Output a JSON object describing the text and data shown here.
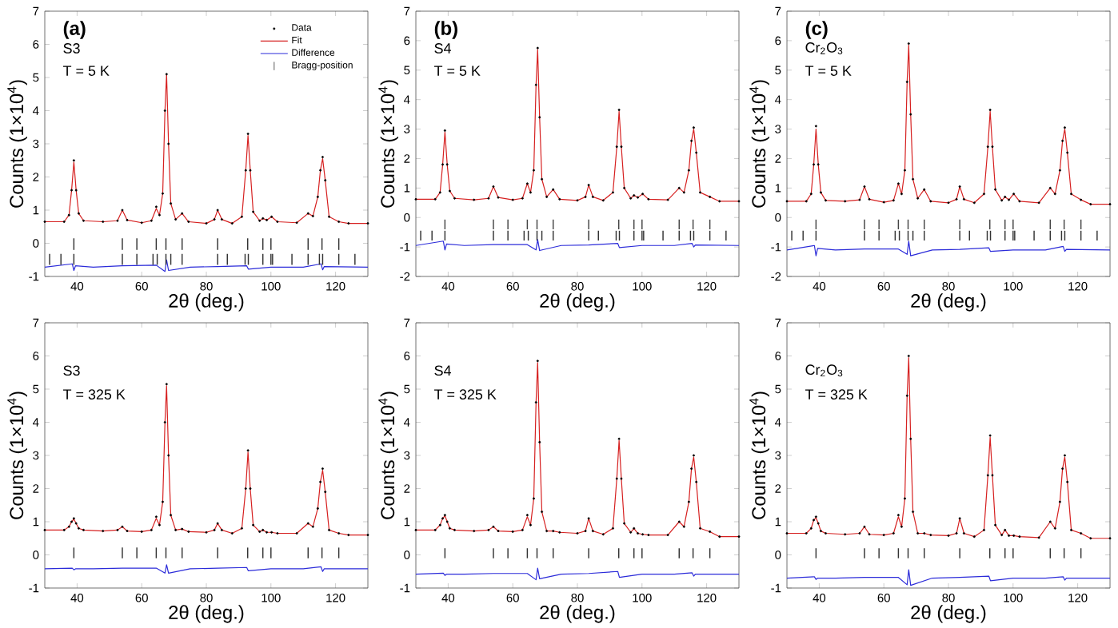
{
  "chart_data": [
    {
      "type": "line",
      "annotations": [
        "(a)",
        "S3",
        "T = 5 K"
      ],
      "xlabel": "2θ (deg.)",
      "ylabel": "Counts (1×10$^{4}$)",
      "xlim": [
        30,
        130
      ],
      "ylim": [
        -1,
        7
      ],
      "xticks": [
        40,
        60,
        80,
        100,
        120
      ],
      "yticks": [
        -1,
        0,
        1,
        2,
        3,
        4,
        5,
        6,
        7
      ],
      "legend": "top right",
      "x": [
        30,
        36,
        37.5,
        38.3,
        39,
        39.7,
        40.5,
        42,
        48,
        52.5,
        54,
        55.5,
        60,
        63,
        64.5,
        65.5,
        66.5,
        67.2,
        67.7,
        68.3,
        69,
        70.5,
        72.5,
        74.5,
        80,
        82.5,
        83.5,
        84.8,
        88,
        91,
        92.2,
        92.9,
        93.6,
        94.5,
        96.5,
        97.5,
        98.7,
        100.2,
        102,
        108,
        111.5,
        113,
        114.5,
        115.3,
        116,
        116.8,
        118,
        121,
        124,
        130
      ],
      "series": [
        {
          "name": "Data",
          "type": "scatter",
          "marker": "circle",
          "color": "#000000",
          "values": [
            0.65,
            0.65,
            0.85,
            1.6,
            2.5,
            1.6,
            0.9,
            0.68,
            0.65,
            0.68,
            1.0,
            0.7,
            0.62,
            0.68,
            1.1,
            0.85,
            1.5,
            4.0,
            5.1,
            3.0,
            1.2,
            0.72,
            0.9,
            0.65,
            0.6,
            0.72,
            1.0,
            0.72,
            0.6,
            0.8,
            2.2,
            3.3,
            2.2,
            0.95,
            0.68,
            0.75,
            0.7,
            0.8,
            0.65,
            0.62,
            0.9,
            0.82,
            1.4,
            2.2,
            2.6,
            1.9,
            0.8,
            0.65,
            0.6,
            0.6
          ]
        },
        {
          "name": "Fit",
          "type": "line",
          "color": "#d62020",
          "values": [
            0.65,
            0.65,
            0.85,
            1.6,
            2.45,
            1.6,
            0.9,
            0.68,
            0.65,
            0.68,
            1.0,
            0.7,
            0.62,
            0.68,
            1.05,
            0.85,
            1.5,
            4.0,
            5.1,
            3.0,
            1.2,
            0.72,
            0.9,
            0.65,
            0.6,
            0.72,
            1.0,
            0.72,
            0.6,
            0.8,
            2.2,
            3.25,
            2.2,
            0.95,
            0.68,
            0.75,
            0.7,
            0.8,
            0.65,
            0.62,
            0.9,
            0.82,
            1.4,
            2.2,
            2.55,
            1.9,
            0.8,
            0.65,
            0.6,
            0.6
          ]
        },
        {
          "name": "Difference",
          "type": "line",
          "color": "#2b2bd9",
          "x": [
            30,
            38.5,
            39,
            39.5,
            45,
            54,
            64.5,
            67.2,
            67.7,
            68.3,
            75,
            83.5,
            92.5,
            93,
            100,
            110,
            115.5,
            116,
            116.5,
            130
          ],
          "values": [
            -0.72,
            -0.62,
            -0.82,
            -0.68,
            -0.72,
            -0.68,
            -0.66,
            -0.85,
            -0.5,
            -0.82,
            -0.72,
            -0.7,
            -0.68,
            -0.78,
            -0.72,
            -0.72,
            -0.62,
            -0.8,
            -0.7,
            -0.72
          ]
        },
        {
          "name": "Bragg-position",
          "type": "bar",
          "color": "#333333",
          "x": [
            39,
            54,
            58.5,
            64.5,
            67.5,
            72.5,
            83.5,
            92.8,
            97.5,
            100,
            111.5,
            115.8,
            121
          ],
          "base": [
            -0.2,
            -0.2,
            -0.2,
            -0.2,
            -0.2,
            -0.2,
            -0.2,
            -0.2,
            -0.2,
            -0.2,
            -0.2,
            -0.2,
            -0.2
          ],
          "values": [
            0.35,
            0.35,
            0.35,
            0.35,
            0.35,
            0.35,
            0.35,
            0.35,
            0.35,
            0.35,
            0.35,
            0.35,
            0.35
          ]
        },
        {
          "type": "bar",
          "color": "#333333",
          "x": [
            31.5,
            35,
            39,
            54,
            58.5,
            63.5,
            64.8,
            67.5,
            69,
            72.5,
            83.5,
            86.5,
            92,
            93,
            97.5,
            100,
            100.5,
            106.5,
            111.5,
            115,
            116,
            121,
            126
          ],
          "base": [
            -0.65,
            -0.65,
            -0.65,
            -0.65,
            -0.65,
            -0.65,
            -0.65,
            -0.65,
            -0.65,
            -0.65,
            -0.65,
            -0.65,
            -0.65,
            -0.65,
            -0.65,
            -0.65,
            -0.65,
            -0.65,
            -0.65,
            -0.65,
            -0.65,
            -0.65,
            -0.65
          ],
          "values": [
            0.33,
            0.33,
            0.33,
            0.33,
            0.33,
            0.33,
            0.33,
            0.33,
            0.33,
            0.33,
            0.33,
            0.33,
            0.33,
            0.33,
            0.33,
            0.33,
            0.33,
            0.33,
            0.33,
            0.33,
            0.33,
            0.33,
            0.33
          ]
        }
      ]
    },
    {
      "type": "line",
      "annotations": [
        "(b)",
        "S4",
        "T = 5 K"
      ],
      "xlabel": "2θ (deg.)",
      "ylabel": "Counts (1×10$^{4}$)",
      "xlim": [
        30,
        130
      ],
      "ylim": [
        -2,
        7
      ],
      "xticks": [
        40,
        60,
        80,
        100,
        120
      ],
      "yticks": [
        -2,
        -1,
        0,
        1,
        2,
        3,
        4,
        5,
        6,
        7
      ],
      "x": [
        30,
        36,
        37.5,
        38.3,
        39,
        39.7,
        40.5,
        42,
        48,
        52.5,
        54,
        55.5,
        60,
        63,
        64.5,
        65.5,
        66.5,
        67.2,
        67.7,
        68.3,
        69,
        70.5,
        72.5,
        74.5,
        80,
        82.5,
        83.5,
        84.8,
        88,
        91,
        92.2,
        92.9,
        93.6,
        94.5,
        96.5,
        97.5,
        98.7,
        100.2,
        102,
        108,
        111.5,
        113,
        114.5,
        115.3,
        116,
        116.8,
        118,
        121,
        124,
        130
      ],
      "series": [
        {
          "type": "scatter",
          "marker": "circle",
          "color": "#000000",
          "values": [
            0.62,
            0.62,
            0.85,
            1.8,
            2.95,
            1.8,
            0.9,
            0.65,
            0.6,
            0.65,
            1.05,
            0.68,
            0.6,
            0.65,
            1.15,
            0.85,
            1.6,
            4.5,
            5.75,
            3.4,
            1.3,
            0.7,
            0.95,
            0.62,
            0.58,
            0.7,
            1.1,
            0.7,
            0.58,
            0.85,
            2.4,
            3.65,
            2.4,
            1.0,
            0.65,
            0.75,
            0.68,
            0.8,
            0.62,
            0.6,
            1.0,
            0.85,
            1.6,
            2.6,
            3.05,
            2.2,
            0.85,
            0.7,
            0.55,
            0.55
          ]
        },
        {
          "type": "line",
          "color": "#d62020",
          "values": [
            0.62,
            0.62,
            0.85,
            1.8,
            2.9,
            1.8,
            0.9,
            0.65,
            0.6,
            0.65,
            1.05,
            0.68,
            0.6,
            0.65,
            1.15,
            0.85,
            1.6,
            4.5,
            5.7,
            3.4,
            1.3,
            0.7,
            0.95,
            0.62,
            0.58,
            0.7,
            1.1,
            0.7,
            0.58,
            0.85,
            2.4,
            3.6,
            2.4,
            1.0,
            0.65,
            0.75,
            0.68,
            0.8,
            0.62,
            0.6,
            1.0,
            0.85,
            1.6,
            2.6,
            3.0,
            2.2,
            0.85,
            0.7,
            0.55,
            0.55
          ]
        },
        {
          "type": "line",
          "color": "#2b2bd9",
          "x": [
            30,
            38.5,
            39,
            39.5,
            45,
            54,
            64.5,
            67.2,
            67.7,
            68.3,
            75,
            83.5,
            92.5,
            93,
            100,
            110,
            115.5,
            116,
            116.5,
            130
          ],
          "values": [
            -0.95,
            -0.8,
            -1.1,
            -0.9,
            -0.95,
            -0.92,
            -0.92,
            -1.1,
            -0.75,
            -1.12,
            -0.95,
            -0.93,
            -0.88,
            -1.02,
            -0.95,
            -0.95,
            -0.88,
            -1.0,
            -0.93,
            -0.95
          ]
        },
        {
          "type": "bar",
          "color": "#444444",
          "x": [
            39,
            54,
            58.5,
            64.5,
            67.5,
            72.5,
            83.5,
            92.8,
            97.5,
            100,
            111.5,
            115.8,
            121
          ],
          "base": [
            -0.4,
            -0.4,
            -0.4,
            -0.4,
            -0.4,
            -0.4,
            -0.4,
            -0.4,
            -0.4,
            -0.4,
            -0.4,
            -0.4,
            -0.4
          ],
          "values": [
            0.33,
            0.33,
            0.33,
            0.33,
            0.33,
            0.33,
            0.33,
            0.33,
            0.33,
            0.33,
            0.33,
            0.33,
            0.33
          ]
        },
        {
          "type": "bar",
          "color": "#333333",
          "x": [
            31.5,
            35,
            39,
            54,
            58.5,
            63.5,
            64.8,
            67.5,
            69,
            72.5,
            83.5,
            86.5,
            92,
            93,
            97.5,
            100,
            100.5,
            106.5,
            111.5,
            115,
            116,
            121,
            126
          ],
          "base": [
            -0.78,
            -0.78,
            -0.78,
            -0.78,
            -0.78,
            -0.78,
            -0.78,
            -0.78,
            -0.78,
            -0.78,
            -0.78,
            -0.78,
            -0.78,
            -0.78,
            -0.78,
            -0.78,
            -0.78,
            -0.78,
            -0.78,
            -0.78,
            -0.78,
            -0.78,
            -0.78
          ],
          "values": [
            0.33,
            0.33,
            0.33,
            0.33,
            0.33,
            0.33,
            0.33,
            0.33,
            0.33,
            0.33,
            0.33,
            0.33,
            0.33,
            0.33,
            0.33,
            0.33,
            0.33,
            0.33,
            0.33,
            0.33,
            0.33,
            0.33,
            0.33
          ]
        }
      ]
    },
    {
      "type": "line",
      "annotations": [
        "(c)",
        "Cr$_{2}$O$_{3}$",
        "T = 5 K"
      ],
      "xlabel": "2θ (deg.)",
      "ylabel": "Counts (1×10$^{4}$)",
      "xlim": [
        30,
        130
      ],
      "ylim": [
        -2,
        7
      ],
      "xticks": [
        40,
        60,
        80,
        100,
        120
      ],
      "yticks": [
        -2,
        -1,
        0,
        1,
        2,
        3,
        4,
        5,
        6,
        7
      ],
      "x": [
        30,
        36,
        37.5,
        38.3,
        39,
        39.7,
        40.5,
        42,
        48,
        52.5,
        54,
        55.5,
        60,
        63,
        64.5,
        65.5,
        66.5,
        67.2,
        67.7,
        68.3,
        69,
        70.5,
        72.5,
        74.5,
        80,
        82.5,
        83.5,
        84.8,
        88,
        91,
        92.2,
        92.9,
        93.6,
        94.5,
        96.5,
        97.5,
        98.7,
        100.2,
        102,
        108,
        111.5,
        113,
        114.5,
        115.3,
        116,
        116.8,
        118,
        121,
        124,
        130
      ],
      "series": [
        {
          "type": "scatter",
          "marker": "circle",
          "color": "#000000",
          "values": [
            0.55,
            0.55,
            0.8,
            1.8,
            3.1,
            1.8,
            0.85,
            0.58,
            0.55,
            0.6,
            1.05,
            0.62,
            0.52,
            0.58,
            1.15,
            0.8,
            1.6,
            4.6,
            5.9,
            3.5,
            1.3,
            0.65,
            0.95,
            0.55,
            0.5,
            0.62,
            1.05,
            0.62,
            0.5,
            0.8,
            2.4,
            3.65,
            2.4,
            0.95,
            0.58,
            0.7,
            0.6,
            0.8,
            0.55,
            0.5,
            1.0,
            0.8,
            1.6,
            2.6,
            3.05,
            2.2,
            0.8,
            0.6,
            0.45,
            0.45
          ]
        },
        {
          "type": "line",
          "color": "#d62020",
          "values": [
            0.55,
            0.55,
            0.8,
            1.8,
            3.0,
            1.8,
            0.85,
            0.58,
            0.55,
            0.6,
            1.05,
            0.62,
            0.52,
            0.58,
            1.15,
            0.8,
            1.6,
            4.6,
            5.85,
            3.5,
            1.3,
            0.65,
            0.95,
            0.55,
            0.5,
            0.62,
            1.05,
            0.62,
            0.5,
            0.8,
            2.4,
            3.6,
            2.4,
            0.95,
            0.58,
            0.7,
            0.6,
            0.8,
            0.55,
            0.5,
            1.0,
            0.8,
            1.6,
            2.6,
            3.0,
            2.2,
            0.8,
            0.6,
            0.45,
            0.45
          ]
        },
        {
          "type": "line",
          "color": "#2b2bd9",
          "x": [
            30,
            38.5,
            39,
            39.5,
            45,
            54,
            64.5,
            67.2,
            67.7,
            68.3,
            75,
            83.5,
            92.5,
            93,
            100,
            110,
            115.5,
            116,
            116.5,
            130
          ],
          "values": [
            -1.1,
            -0.95,
            -1.3,
            -1.05,
            -1.1,
            -1.07,
            -1.07,
            -1.25,
            -0.8,
            -1.3,
            -1.1,
            -1.08,
            -1.03,
            -1.15,
            -1.1,
            -1.1,
            -0.98,
            -1.15,
            -1.08,
            -1.1
          ]
        },
        {
          "type": "bar",
          "color": "#444444",
          "x": [
            39,
            54,
            58.5,
            64.5,
            67.5,
            72.5,
            83.5,
            92.8,
            97.5,
            100,
            111.5,
            115.8,
            121
          ],
          "base": [
            -0.4,
            -0.4,
            -0.4,
            -0.4,
            -0.4,
            -0.4,
            -0.4,
            -0.4,
            -0.4,
            -0.4,
            -0.4,
            -0.4,
            -0.4
          ],
          "values": [
            0.33,
            0.33,
            0.33,
            0.33,
            0.33,
            0.33,
            0.33,
            0.33,
            0.33,
            0.33,
            0.33,
            0.33,
            0.33
          ]
        },
        {
          "type": "bar",
          "color": "#333333",
          "x": [
            31.5,
            35,
            39,
            54,
            58.5,
            63.5,
            64.8,
            67.5,
            69,
            72.5,
            83.5,
            86.5,
            92,
            93,
            97.5,
            100,
            100.5,
            106.5,
            111.5,
            115,
            116,
            121,
            126
          ],
          "base": [
            -0.78,
            -0.78,
            -0.78,
            -0.78,
            -0.78,
            -0.78,
            -0.78,
            -0.78,
            -0.78,
            -0.78,
            -0.78,
            -0.78,
            -0.78,
            -0.78,
            -0.78,
            -0.78,
            -0.78,
            -0.78,
            -0.78,
            -0.78,
            -0.78,
            -0.78,
            -0.78
          ],
          "values": [
            0.33,
            0.33,
            0.33,
            0.33,
            0.33,
            0.33,
            0.33,
            0.33,
            0.33,
            0.33,
            0.33,
            0.33,
            0.33,
            0.33,
            0.33,
            0.33,
            0.33,
            0.33,
            0.33,
            0.33,
            0.33,
            0.33,
            0.33
          ]
        }
      ]
    },
    {
      "type": "line",
      "annotations": [
        "S3",
        "T = 325 K"
      ],
      "xlabel": "2θ (deg.)",
      "ylabel": "Counts (1×10$^{4}$)",
      "xlim": [
        30,
        130
      ],
      "ylim": [
        -1,
        7
      ],
      "xticks": [
        40,
        60,
        80,
        100,
        120
      ],
      "yticks": [
        -1,
        0,
        1,
        2,
        3,
        4,
        5,
        6,
        7
      ],
      "x": [
        30,
        36,
        37.5,
        38.3,
        39,
        39.7,
        40.5,
        42,
        48,
        52.5,
        54,
        55.5,
        60,
        63,
        64.5,
        65.5,
        66.5,
        67.2,
        67.7,
        68.3,
        69,
        70.5,
        72.5,
        74.5,
        80,
        82.5,
        83.5,
        84.8,
        88,
        91,
        92.2,
        92.9,
        93.6,
        94.5,
        96.5,
        97.5,
        98.7,
        100.2,
        102,
        108,
        111.5,
        113,
        114.5,
        115.3,
        116,
        116.8,
        118,
        121,
        124,
        130
      ],
      "series": [
        {
          "type": "scatter",
          "marker": "circle",
          "color": "#000000",
          "values": [
            0.75,
            0.75,
            0.85,
            1.0,
            1.1,
            0.95,
            0.8,
            0.75,
            0.72,
            0.75,
            0.85,
            0.72,
            0.7,
            0.75,
            1.15,
            0.9,
            1.6,
            4.0,
            5.15,
            3.0,
            1.2,
            0.75,
            0.78,
            0.7,
            0.68,
            0.75,
            0.95,
            0.75,
            0.65,
            0.8,
            2.0,
            3.15,
            2.0,
            0.9,
            0.7,
            0.75,
            0.68,
            0.68,
            0.65,
            0.65,
            0.95,
            0.85,
            1.4,
            2.2,
            2.6,
            1.9,
            0.75,
            0.65,
            0.6,
            0.6
          ]
        },
        {
          "type": "line",
          "color": "#d62020",
          "values": [
            0.75,
            0.75,
            0.85,
            1.0,
            1.08,
            0.95,
            0.8,
            0.75,
            0.72,
            0.75,
            0.85,
            0.72,
            0.7,
            0.75,
            1.1,
            0.9,
            1.6,
            4.0,
            5.1,
            3.0,
            1.2,
            0.75,
            0.78,
            0.7,
            0.68,
            0.75,
            0.95,
            0.75,
            0.65,
            0.8,
            2.0,
            3.1,
            2.0,
            0.9,
            0.7,
            0.75,
            0.68,
            0.68,
            0.65,
            0.65,
            0.95,
            0.85,
            1.4,
            2.2,
            2.55,
            1.9,
            0.75,
            0.65,
            0.6,
            0.6
          ]
        },
        {
          "type": "line",
          "color": "#2b2bd9",
          "x": [
            30,
            38.5,
            39,
            39.5,
            45,
            54,
            64.5,
            67.2,
            67.7,
            68.3,
            75,
            83.5,
            92.5,
            93,
            100,
            110,
            115.5,
            116,
            116.5,
            130
          ],
          "values": [
            -0.42,
            -0.4,
            -0.45,
            -0.42,
            -0.42,
            -0.4,
            -0.4,
            -0.55,
            -0.3,
            -0.55,
            -0.42,
            -0.4,
            -0.38,
            -0.48,
            -0.42,
            -0.42,
            -0.36,
            -0.5,
            -0.42,
            -0.42
          ]
        },
        {
          "type": "bar",
          "color": "#333333",
          "x": [
            39,
            54,
            58.5,
            64.5,
            67.5,
            72.5,
            83.5,
            92.8,
            97.5,
            100,
            111.5,
            115.8,
            121
          ],
          "base": [
            -0.1,
            -0.1,
            -0.1,
            -0.1,
            -0.1,
            -0.1,
            -0.1,
            -0.1,
            -0.1,
            -0.1,
            -0.1,
            -0.1,
            -0.1
          ],
          "values": [
            0.32,
            0.32,
            0.32,
            0.32,
            0.32,
            0.32,
            0.32,
            0.32,
            0.32,
            0.32,
            0.32,
            0.32,
            0.32
          ]
        }
      ]
    },
    {
      "type": "line",
      "annotations": [
        "S4",
        "T = 325 K"
      ],
      "xlabel": "2θ (deg.)",
      "ylabel": "Counts (1×10$^{4}$)",
      "xlim": [
        30,
        130
      ],
      "ylim": [
        -1,
        7
      ],
      "xticks": [
        40,
        60,
        80,
        100,
        120
      ],
      "yticks": [
        -1,
        0,
        1,
        2,
        3,
        4,
        5,
        6,
        7
      ],
      "x": [
        30,
        36,
        37.5,
        38.3,
        39,
        39.7,
        40.5,
        42,
        48,
        52.5,
        54,
        55.5,
        60,
        63,
        64.5,
        65.5,
        66.5,
        67.2,
        67.7,
        68.3,
        69,
        70.5,
        72.5,
        74.5,
        80,
        82.5,
        83.5,
        84.8,
        88,
        91,
        92.2,
        92.9,
        93.6,
        94.5,
        96.5,
        97.5,
        98.7,
        100.2,
        102,
        108,
        111.5,
        113,
        114.5,
        115.3,
        116,
        116.8,
        118,
        121,
        124,
        130
      ],
      "series": [
        {
          "type": "scatter",
          "marker": "circle",
          "color": "#000000",
          "values": [
            0.75,
            0.75,
            0.9,
            1.1,
            1.2,
            1.0,
            0.8,
            0.75,
            0.72,
            0.75,
            0.85,
            0.72,
            0.7,
            0.75,
            1.2,
            0.9,
            1.7,
            4.6,
            5.85,
            3.4,
            1.3,
            0.72,
            0.72,
            0.68,
            0.65,
            0.72,
            1.1,
            0.72,
            0.62,
            0.8,
            2.3,
            3.5,
            2.3,
            0.95,
            0.68,
            0.8,
            0.65,
            0.62,
            0.6,
            0.6,
            1.0,
            0.85,
            1.6,
            2.6,
            3.0,
            2.2,
            0.8,
            0.7,
            0.55,
            0.55
          ]
        },
        {
          "type": "line",
          "color": "#d62020",
          "values": [
            0.75,
            0.75,
            0.9,
            1.1,
            1.18,
            1.0,
            0.8,
            0.75,
            0.72,
            0.75,
            0.85,
            0.72,
            0.7,
            0.75,
            1.15,
            0.9,
            1.7,
            4.6,
            5.8,
            3.4,
            1.3,
            0.72,
            0.72,
            0.68,
            0.65,
            0.72,
            1.1,
            0.72,
            0.62,
            0.8,
            2.3,
            3.45,
            2.3,
            0.95,
            0.68,
            0.8,
            0.65,
            0.62,
            0.6,
            0.6,
            1.0,
            0.85,
            1.6,
            2.6,
            2.95,
            2.2,
            0.8,
            0.7,
            0.55,
            0.55
          ]
        },
        {
          "type": "line",
          "color": "#2b2bd9",
          "x": [
            30,
            38.5,
            39,
            39.5,
            45,
            54,
            64.5,
            67.2,
            67.7,
            68.3,
            75,
            83.5,
            92.5,
            93,
            100,
            110,
            115.5,
            116,
            116.5,
            130
          ],
          "values": [
            -0.58,
            -0.55,
            -0.62,
            -0.58,
            -0.58,
            -0.56,
            -0.56,
            -0.75,
            -0.4,
            -0.72,
            -0.58,
            -0.56,
            -0.5,
            -0.68,
            -0.58,
            -0.58,
            -0.54,
            -0.64,
            -0.58,
            -0.58
          ]
        },
        {
          "type": "bar",
          "color": "#333333",
          "x": [
            39,
            54,
            58.5,
            64.5,
            67.5,
            72.5,
            83.5,
            92.8,
            97.5,
            100,
            111.5,
            115.8,
            121
          ],
          "base": [
            -0.1,
            -0.1,
            -0.1,
            -0.1,
            -0.1,
            -0.1,
            -0.1,
            -0.1,
            -0.1,
            -0.1,
            -0.1,
            -0.1,
            -0.1
          ],
          "values": [
            0.3,
            0.3,
            0.3,
            0.3,
            0.3,
            0.3,
            0.3,
            0.3,
            0.3,
            0.3,
            0.3,
            0.3,
            0.3
          ]
        }
      ]
    },
    {
      "type": "line",
      "annotations": [
        "Cr$_{2}$O$_{3}$",
        "T = 325 K"
      ],
      "xlabel": "2θ (deg.)",
      "ylabel": "Counts (1×10$^{4}$)",
      "xlim": [
        30,
        130
      ],
      "ylim": [
        -1,
        7
      ],
      "xticks": [
        40,
        60,
        80,
        100,
        120
      ],
      "yticks": [
        -1,
        0,
        1,
        2,
        3,
        4,
        5,
        6,
        7
      ],
      "x": [
        30,
        36,
        37.5,
        38.3,
        39,
        39.7,
        40.5,
        42,
        48,
        52.5,
        54,
        55.5,
        60,
        63,
        64.5,
        65.5,
        66.5,
        67.2,
        67.7,
        68.3,
        69,
        70.5,
        72.5,
        74.5,
        80,
        82.5,
        83.5,
        84.8,
        88,
        91,
        92.2,
        92.9,
        93.6,
        94.5,
        96.5,
        97.5,
        98.7,
        100.2,
        102,
        108,
        111.5,
        113,
        114.5,
        115.3,
        116,
        116.8,
        118,
        121,
        124,
        130
      ],
      "series": [
        {
          "type": "scatter",
          "marker": "circle",
          "color": "#000000",
          "values": [
            0.65,
            0.65,
            0.8,
            1.05,
            1.15,
            0.95,
            0.72,
            0.65,
            0.62,
            0.65,
            0.85,
            0.62,
            0.6,
            0.65,
            1.2,
            0.85,
            1.7,
            4.8,
            6.0,
            3.5,
            1.3,
            0.65,
            0.65,
            0.6,
            0.58,
            0.65,
            1.1,
            0.65,
            0.55,
            0.75,
            2.4,
            3.6,
            2.4,
            0.9,
            0.6,
            0.75,
            0.58,
            0.58,
            0.55,
            0.52,
            1.0,
            0.8,
            1.6,
            2.6,
            3.0,
            2.2,
            0.75,
            0.65,
            0.5,
            0.5
          ]
        },
        {
          "type": "line",
          "color": "#d62020",
          "values": [
            0.65,
            0.65,
            0.8,
            1.05,
            1.12,
            0.95,
            0.72,
            0.65,
            0.62,
            0.65,
            0.85,
            0.62,
            0.6,
            0.65,
            1.15,
            0.85,
            1.7,
            4.8,
            5.95,
            3.5,
            1.3,
            0.65,
            0.65,
            0.6,
            0.58,
            0.65,
            1.1,
            0.65,
            0.55,
            0.75,
            2.4,
            3.55,
            2.4,
            0.9,
            0.6,
            0.75,
            0.58,
            0.58,
            0.55,
            0.52,
            1.0,
            0.8,
            1.6,
            2.6,
            2.95,
            2.2,
            0.75,
            0.65,
            0.5,
            0.5
          ]
        },
        {
          "type": "line",
          "color": "#2b2bd9",
          "x": [
            30,
            38.5,
            39,
            39.5,
            45,
            54,
            64.5,
            67.2,
            67.7,
            68.3,
            75,
            83.5,
            92.5,
            93,
            100,
            110,
            115.5,
            116,
            116.5,
            130
          ],
          "values": [
            -0.7,
            -0.66,
            -0.74,
            -0.7,
            -0.7,
            -0.68,
            -0.68,
            -0.9,
            -0.45,
            -0.92,
            -0.7,
            -0.68,
            -0.64,
            -0.78,
            -0.7,
            -0.7,
            -0.66,
            -0.76,
            -0.7,
            -0.7
          ]
        },
        {
          "type": "bar",
          "color": "#333333",
          "x": [
            39,
            54,
            58.5,
            64.5,
            67.5,
            72.5,
            83.5,
            92.8,
            97.5,
            100,
            111.5,
            115.8,
            121
          ],
          "base": [
            -0.1,
            -0.1,
            -0.1,
            -0.1,
            -0.1,
            -0.1,
            -0.1,
            -0.1,
            -0.1,
            -0.1,
            -0.1,
            -0.1,
            -0.1
          ],
          "values": [
            0.3,
            0.3,
            0.3,
            0.3,
            0.3,
            0.3,
            0.3,
            0.3,
            0.3,
            0.3,
            0.3,
            0.3,
            0.3
          ]
        }
      ]
    }
  ]
}
